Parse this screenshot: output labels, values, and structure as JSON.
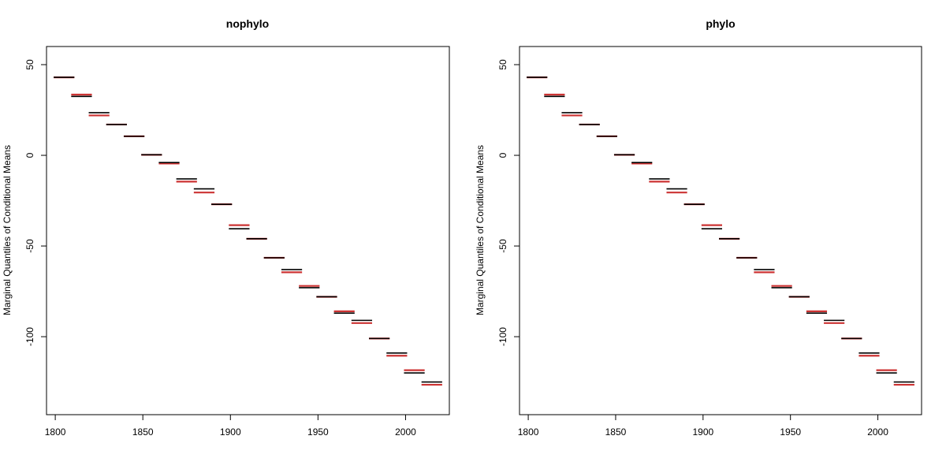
{
  "chart_data": [
    {
      "type": "line",
      "title": "nophylo",
      "xlabel": "",
      "ylabel": "Marginal Quantiles of Conditional Means",
      "xlim": [
        1795,
        2025
      ],
      "ylim": [
        -143,
        60
      ],
      "xticks": [
        1800,
        1850,
        1900,
        1950,
        2000
      ],
      "yticks": [
        50,
        0,
        -50,
        -100
      ],
      "series": [
        {
          "color": "#000000",
          "segments": [
            {
              "x0": 1800,
              "x1": 1810,
              "y": 43
            },
            {
              "x0": 1810,
              "x1": 1820,
              "y": 32.5
            },
            {
              "x0": 1820,
              "x1": 1830,
              "y": 23.5
            },
            {
              "x0": 1830,
              "x1": 1840,
              "y": 17
            },
            {
              "x0": 1840,
              "x1": 1850,
              "y": 10.5
            },
            {
              "x0": 1850,
              "x1": 1860,
              "y": 0.3
            },
            {
              "x0": 1860,
              "x1": 1870,
              "y": -4
            },
            {
              "x0": 1870,
              "x1": 1880,
              "y": -13
            },
            {
              "x0": 1880,
              "x1": 1890,
              "y": -18.5
            },
            {
              "x0": 1890,
              "x1": 1900,
              "y": -27
            },
            {
              "x0": 1900,
              "x1": 1910,
              "y": -40.5
            },
            {
              "x0": 1910,
              "x1": 1920,
              "y": -46
            },
            {
              "x0": 1920,
              "x1": 1930,
              "y": -56.5
            },
            {
              "x0": 1930,
              "x1": 1940,
              "y": -63
            },
            {
              "x0": 1940,
              "x1": 1950,
              "y": -73
            },
            {
              "x0": 1950,
              "x1": 1960,
              "y": -78
            },
            {
              "x0": 1960,
              "x1": 1970,
              "y": -87
            },
            {
              "x0": 1970,
              "x1": 1980,
              "y": -91
            },
            {
              "x0": 1980,
              "x1": 1990,
              "y": -101
            },
            {
              "x0": 1990,
              "x1": 2000,
              "y": -109
            },
            {
              "x0": 2000,
              "x1": 2010,
              "y": -120
            },
            {
              "x0": 2010,
              "x1": 2020,
              "y": -125
            }
          ]
        },
        {
          "color": "#cc3333",
          "segments": [
            {
              "x0": 1800,
              "x1": 1810,
              "y": 43
            },
            {
              "x0": 1810,
              "x1": 1820,
              "y": 33.5
            },
            {
              "x0": 1820,
              "x1": 1830,
              "y": 22
            },
            {
              "x0": 1830,
              "x1": 1840,
              "y": 17
            },
            {
              "x0": 1840,
              "x1": 1850,
              "y": 10.5
            },
            {
              "x0": 1850,
              "x1": 1860,
              "y": 0.3
            },
            {
              "x0": 1860,
              "x1": 1870,
              "y": -4.5
            },
            {
              "x0": 1870,
              "x1": 1880,
              "y": -14.5
            },
            {
              "x0": 1880,
              "x1": 1890,
              "y": -20.5
            },
            {
              "x0": 1890,
              "x1": 1900,
              "y": -27
            },
            {
              "x0": 1900,
              "x1": 1910,
              "y": -38.5
            },
            {
              "x0": 1910,
              "x1": 1920,
              "y": -46
            },
            {
              "x0": 1920,
              "x1": 1930,
              "y": -56.5
            },
            {
              "x0": 1930,
              "x1": 1940,
              "y": -64.5
            },
            {
              "x0": 1940,
              "x1": 1950,
              "y": -72
            },
            {
              "x0": 1950,
              "x1": 1960,
              "y": -78
            },
            {
              "x0": 1960,
              "x1": 1970,
              "y": -86
            },
            {
              "x0": 1970,
              "x1": 1980,
              "y": -92.5
            },
            {
              "x0": 1980,
              "x1": 1990,
              "y": -101
            },
            {
              "x0": 1990,
              "x1": 2000,
              "y": -110.5
            },
            {
              "x0": 2000,
              "x1": 2010,
              "y": -118.5
            },
            {
              "x0": 2010,
              "x1": 2020,
              "y": -126.5
            }
          ]
        }
      ]
    },
    {
      "type": "line",
      "title": "phylo",
      "xlabel": "",
      "ylabel": "Marginal Quantiles of Conditional Means",
      "xlim": [
        1795,
        2025
      ],
      "ylim": [
        -143,
        60
      ],
      "xticks": [
        1800,
        1850,
        1900,
        1950,
        2000
      ],
      "yticks": [
        50,
        0,
        -50,
        -100
      ],
      "series": [
        {
          "color": "#000000",
          "segments": [
            {
              "x0": 1800,
              "x1": 1810,
              "y": 43
            },
            {
              "x0": 1810,
              "x1": 1820,
              "y": 32.5
            },
            {
              "x0": 1820,
              "x1": 1830,
              "y": 23.5
            },
            {
              "x0": 1830,
              "x1": 1840,
              "y": 17
            },
            {
              "x0": 1840,
              "x1": 1850,
              "y": 10.5
            },
            {
              "x0": 1850,
              "x1": 1860,
              "y": 0.3
            },
            {
              "x0": 1860,
              "x1": 1870,
              "y": -4
            },
            {
              "x0": 1870,
              "x1": 1880,
              "y": -13
            },
            {
              "x0": 1880,
              "x1": 1890,
              "y": -18.5
            },
            {
              "x0": 1890,
              "x1": 1900,
              "y": -27
            },
            {
              "x0": 1900,
              "x1": 1910,
              "y": -40.5
            },
            {
              "x0": 1910,
              "x1": 1920,
              "y": -46
            },
            {
              "x0": 1920,
              "x1": 1930,
              "y": -56.5
            },
            {
              "x0": 1930,
              "x1": 1940,
              "y": -63
            },
            {
              "x0": 1940,
              "x1": 1950,
              "y": -73
            },
            {
              "x0": 1950,
              "x1": 1960,
              "y": -78
            },
            {
              "x0": 1960,
              "x1": 1970,
              "y": -87
            },
            {
              "x0": 1970,
              "x1": 1980,
              "y": -91
            },
            {
              "x0": 1980,
              "x1": 1990,
              "y": -101
            },
            {
              "x0": 1990,
              "x1": 2000,
              "y": -109
            },
            {
              "x0": 2000,
              "x1": 2010,
              "y": -120
            },
            {
              "x0": 2010,
              "x1": 2020,
              "y": -125
            }
          ]
        },
        {
          "color": "#cc3333",
          "segments": [
            {
              "x0": 1800,
              "x1": 1810,
              "y": 43
            },
            {
              "x0": 1810,
              "x1": 1820,
              "y": 33.5
            },
            {
              "x0": 1820,
              "x1": 1830,
              "y": 22
            },
            {
              "x0": 1830,
              "x1": 1840,
              "y": 17
            },
            {
              "x0": 1840,
              "x1": 1850,
              "y": 10.5
            },
            {
              "x0": 1850,
              "x1": 1860,
              "y": 0.3
            },
            {
              "x0": 1860,
              "x1": 1870,
              "y": -4.5
            },
            {
              "x0": 1870,
              "x1": 1880,
              "y": -14.5
            },
            {
              "x0": 1880,
              "x1": 1890,
              "y": -20.5
            },
            {
              "x0": 1890,
              "x1": 1900,
              "y": -27
            },
            {
              "x0": 1900,
              "x1": 1910,
              "y": -38.5
            },
            {
              "x0": 1910,
              "x1": 1920,
              "y": -46
            },
            {
              "x0": 1920,
              "x1": 1930,
              "y": -56.5
            },
            {
              "x0": 1930,
              "x1": 1940,
              "y": -64.5
            },
            {
              "x0": 1940,
              "x1": 1950,
              "y": -72
            },
            {
              "x0": 1950,
              "x1": 1960,
              "y": -78
            },
            {
              "x0": 1960,
              "x1": 1970,
              "y": -86
            },
            {
              "x0": 1970,
              "x1": 1980,
              "y": -92.5
            },
            {
              "x0": 1980,
              "x1": 1990,
              "y": -101
            },
            {
              "x0": 1990,
              "x1": 2000,
              "y": -110.5
            },
            {
              "x0": 2000,
              "x1": 2010,
              "y": -118.5
            },
            {
              "x0": 2010,
              "x1": 2020,
              "y": -126.5
            }
          ]
        }
      ]
    }
  ]
}
